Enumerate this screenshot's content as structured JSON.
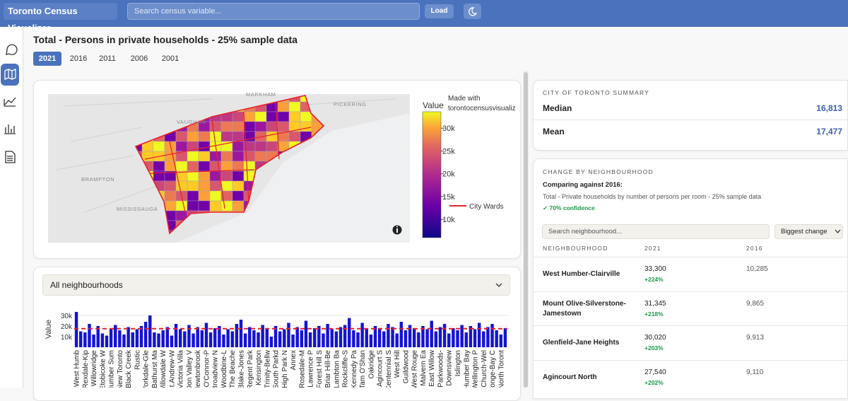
{
  "header": {
    "title": "Toronto Census Visualizer",
    "search_placeholder": "Search census variable...",
    "load": "Load"
  },
  "page_title": "Total - Persons in private households - 25% sample data",
  "year_tabs": [
    "2021",
    "2016",
    "2011",
    "2006",
    "2001"
  ],
  "filter": {
    "dropdown": "All neighbourhoods"
  },
  "chart_data": [
    {
      "type": "choropleth",
      "colorbar_title": "Value",
      "annotation": [
        "Made with",
        "torontocensusvisualiz"
      ],
      "map_labels": [
        "MARKHAM",
        "PICKERING",
        "VAUGHAN",
        "BRAMPTON",
        "MISSISSAUGA"
      ],
      "legend": "City Wards",
      "legend_color": "#e8202a",
      "ylim": [
        6000,
        33600
      ],
      "yticks": [
        {
          "value": 30000,
          "label": "30k"
        },
        {
          "value": 25000,
          "label": "25k"
        },
        {
          "value": 20000,
          "label": "20k"
        },
        {
          "value": 15000,
          "label": "15k"
        },
        {
          "value": 10000,
          "label": "10k"
        }
      ]
    },
    {
      "type": "bar",
      "y_label": "Value",
      "color": "#1414d2",
      "mean_line": 17477,
      "mean_color": "#e8202a",
      "grid": true,
      "ylim": [
        0,
        34000
      ],
      "yticks": [
        {
          "value": 10000,
          "label": "10k"
        },
        {
          "value": 20000,
          "label": "20k"
        },
        {
          "value": 30000,
          "label": "30k"
        }
      ],
      "categories": [
        "West Humb",
        null,
        "Rexdale-Kip",
        null,
        "Willowridge",
        null,
        "Etobicoke W",
        null,
        "Humber Sum",
        null,
        "New Toronto",
        null,
        "Black Creek",
        null,
        "Rustic",
        null,
        "Yorkdale-Gle",
        null,
        "Bathurst Ma",
        null,
        "Willowdale W",
        null,
        "St.Andrew-W",
        null,
        "Victoria Villa",
        null,
        "Don Valley V",
        null,
        "Newtonbrook",
        null,
        "O'Connor-P",
        null,
        "Broadview N",
        null,
        "Woodbine-L",
        null,
        "The Beache",
        null,
        "Blake-Jones",
        null,
        "Regent Park",
        null,
        "Kensington",
        null,
        "Trinity-Bellw",
        null,
        "South Parkd",
        null,
        "High Park N",
        null,
        "Annex",
        null,
        "Rosedale-M",
        null,
        "Lawrence P",
        null,
        "Forest Hill S",
        null,
        "Briar Hill-Be",
        null,
        "Lambton Ba",
        null,
        "Rockcliffe-S",
        null,
        "Kennedy Pa",
        null,
        "Tam O'Shan",
        null,
        "Oakridge",
        null,
        "Agincourt S",
        null,
        "Centennial S",
        null,
        "West Hill",
        null,
        "Guildwood",
        null,
        "West Rouge",
        null,
        "Malvern Ea",
        null,
        "East Willow",
        null,
        "Parkwoods-",
        null,
        "Downsview",
        null,
        "Islington",
        null,
        "Humber Bay",
        null,
        "Wellington P",
        null,
        "Church-Wel",
        null,
        "Yonge-Bay C",
        null,
        "North Toront",
        null
      ],
      "values": [
        33300,
        15000,
        14000,
        22000,
        12000,
        20000,
        13000,
        11000,
        18000,
        21000,
        16000,
        12000,
        19000,
        14000,
        17000,
        20000,
        24000,
        30020,
        14000,
        13000,
        16000,
        19000,
        11000,
        22000,
        17000,
        15000,
        21000,
        13000,
        19000,
        16000,
        23000,
        14000,
        18000,
        20000,
        12000,
        17000,
        15000,
        22000,
        26000,
        13000,
        19000,
        16000,
        14000,
        21000,
        18000,
        10000,
        20000,
        15000,
        17000,
        23000,
        12000,
        19000,
        16000,
        25000,
        14000,
        18000,
        20000,
        13000,
        22000,
        17000,
        15000,
        19000,
        21000,
        27540,
        16000,
        14000,
        23000,
        18000,
        12000,
        20000,
        17000,
        15000,
        22000,
        19000,
        13000,
        24000,
        16000,
        21000,
        18000,
        14000,
        20000,
        17000,
        25000,
        15000,
        19000,
        22000,
        13000,
        18000,
        16000,
        21000,
        14000,
        20000,
        17000,
        23000,
        15000,
        19000,
        22000,
        16000,
        12000,
        18000
      ]
    }
  ],
  "summary": {
    "title": "CITY OF TORONTO SUMMARY",
    "rows": [
      {
        "label": "Median",
        "value": "16,813"
      },
      {
        "label": "Mean",
        "value": "17,477"
      }
    ]
  },
  "change": {
    "title": "CHANGE BY NEIGHBOURHOOD",
    "comparing": "Comparing against 2016:",
    "variable": "Total - Private households by number of persons per room - 25% sample data",
    "confidence": "✓ 70% confidence",
    "search_placeholder": "Search neighbourhood...",
    "sort": "Biggest change",
    "columns": [
      "NEIGHBOURHOOD",
      "2021",
      "2016"
    ],
    "rows": [
      {
        "name": "West Humber-Clairville",
        "value_2021": "33,300",
        "change": "+224%",
        "value_2016": "10,285"
      },
      {
        "name": "Mount Olive-Silverstone-Jamestown",
        "value_2021": "31,345",
        "change": "+218%",
        "value_2016": "9,865"
      },
      {
        "name": "Glenfield-Jane Heights",
        "value_2021": "30,020",
        "change": "+203%",
        "value_2016": "9,913"
      },
      {
        "name": "Agincourt North",
        "value_2021": "27,540",
        "change": "+202%",
        "value_2016": "9,110"
      }
    ]
  }
}
